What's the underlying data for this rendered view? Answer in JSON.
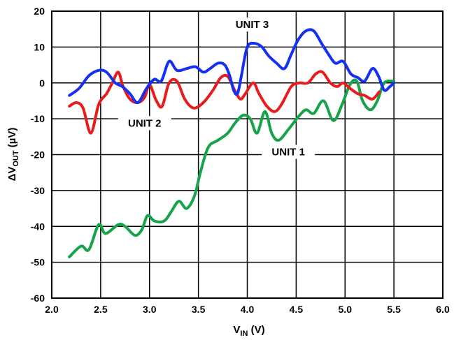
{
  "chart_data": {
    "type": "line",
    "title": "",
    "xlabel": {
      "main": "V",
      "sub": "IN",
      "unit": " (V)"
    },
    "ylabel": {
      "prefix": "ΔV",
      "sub": "OUT",
      "unit": " (µV)"
    },
    "xlim": [
      2.0,
      6.0
    ],
    "ylim": [
      -60,
      20
    ],
    "xticks": [
      "2.0",
      "2.5",
      "3.0",
      "3.5",
      "4.0",
      "4.5",
      "5.0",
      "5.5",
      "6.0"
    ],
    "yticks": [
      "20",
      "10",
      "0",
      "-10",
      "-20",
      "-30",
      "-40",
      "-50",
      "-60"
    ],
    "grid": true,
    "series": [
      {
        "name": "UNIT 1",
        "color": "#16a34a",
        "points": [
          [
            2.18,
            -48.5
          ],
          [
            2.3,
            -45.5
          ],
          [
            2.38,
            -46.5
          ],
          [
            2.48,
            -39.5
          ],
          [
            2.55,
            -42
          ],
          [
            2.68,
            -39.5
          ],
          [
            2.75,
            -40
          ],
          [
            2.85,
            -42.5
          ],
          [
            2.92,
            -41
          ],
          [
            2.98,
            -37
          ],
          [
            3.05,
            -38.5
          ],
          [
            3.15,
            -38.5
          ],
          [
            3.22,
            -36
          ],
          [
            3.3,
            -33
          ],
          [
            3.38,
            -35
          ],
          [
            3.46,
            -31.5
          ],
          [
            3.52,
            -25
          ],
          [
            3.6,
            -18
          ],
          [
            3.7,
            -16
          ],
          [
            3.8,
            -14
          ],
          [
            3.88,
            -11
          ],
          [
            3.96,
            -9
          ],
          [
            4.03,
            -10
          ],
          [
            4.1,
            -14
          ],
          [
            4.18,
            -8
          ],
          [
            4.25,
            -14
          ],
          [
            4.32,
            -16
          ],
          [
            4.42,
            -13
          ],
          [
            4.52,
            -9.5
          ],
          [
            4.6,
            -7.5
          ],
          [
            4.68,
            -8.5
          ],
          [
            4.78,
            -5
          ],
          [
            4.88,
            -10.5
          ],
          [
            4.97,
            -6
          ],
          [
            5.05,
            -0.5
          ],
          [
            5.12,
            0.5
          ],
          [
            5.18,
            -5
          ],
          [
            5.26,
            -7.5
          ],
          [
            5.33,
            -5
          ],
          [
            5.4,
            0
          ],
          [
            5.5,
            0.5
          ]
        ]
      },
      {
        "name": "UNIT 2",
        "color": "#e81c1c",
        "points": [
          [
            2.18,
            -6.5
          ],
          [
            2.25,
            -5.5
          ],
          [
            2.32,
            -7
          ],
          [
            2.4,
            -14
          ],
          [
            2.48,
            -6
          ],
          [
            2.56,
            -3
          ],
          [
            2.62,
            0
          ],
          [
            2.68,
            3
          ],
          [
            2.73,
            -1
          ],
          [
            2.8,
            -4.5
          ],
          [
            2.88,
            -5.5
          ],
          [
            2.95,
            -4
          ],
          [
            3.0,
            -0.5
          ],
          [
            3.07,
            -5
          ],
          [
            3.13,
            -6.5
          ],
          [
            3.2,
            0
          ],
          [
            3.28,
            0.5
          ],
          [
            3.36,
            -4.5
          ],
          [
            3.45,
            -7
          ],
          [
            3.55,
            -5.5
          ],
          [
            3.65,
            -2
          ],
          [
            3.73,
            1.5
          ],
          [
            3.8,
            1.8
          ],
          [
            3.87,
            -2
          ],
          [
            3.93,
            -4.5
          ],
          [
            3.98,
            -3
          ],
          [
            4.06,
            0
          ],
          [
            4.12,
            -3
          ],
          [
            4.2,
            -6.5
          ],
          [
            4.28,
            -8
          ],
          [
            4.35,
            -6
          ],
          [
            4.45,
            -1
          ],
          [
            4.53,
            0
          ],
          [
            4.62,
            0
          ],
          [
            4.7,
            2.5
          ],
          [
            4.77,
            3
          ],
          [
            4.85,
            0
          ],
          [
            4.92,
            -1
          ],
          [
            4.98,
            0
          ],
          [
            5.05,
            -1.5
          ],
          [
            5.13,
            -3
          ],
          [
            5.2,
            -3.5
          ],
          [
            5.28,
            -4.5
          ],
          [
            5.35,
            -2.5
          ]
        ]
      },
      {
        "name": "UNIT 3",
        "color": "#1430f0",
        "points": [
          [
            2.18,
            -3.5
          ],
          [
            2.28,
            -1.5
          ],
          [
            2.38,
            2
          ],
          [
            2.48,
            3.5
          ],
          [
            2.56,
            3
          ],
          [
            2.65,
            0
          ],
          [
            2.72,
            -1
          ],
          [
            2.8,
            -3
          ],
          [
            2.88,
            -5.5
          ],
          [
            2.97,
            -1.5
          ],
          [
            3.05,
            1
          ],
          [
            3.12,
            0.5
          ],
          [
            3.2,
            6
          ],
          [
            3.28,
            3.5
          ],
          [
            3.38,
            4
          ],
          [
            3.47,
            4.5
          ],
          [
            3.55,
            3
          ],
          [
            3.62,
            4
          ],
          [
            3.7,
            5.5
          ],
          [
            3.77,
            5
          ],
          [
            3.82,
            2
          ],
          [
            3.86,
            -2
          ],
          [
            3.9,
            -3
          ],
          [
            3.94,
            2
          ],
          [
            4.0,
            10
          ],
          [
            4.08,
            11
          ],
          [
            4.15,
            10
          ],
          [
            4.22,
            7.5
          ],
          [
            4.3,
            5.5
          ],
          [
            4.38,
            4
          ],
          [
            4.45,
            8
          ],
          [
            4.52,
            12
          ],
          [
            4.6,
            14.5
          ],
          [
            4.68,
            14.5
          ],
          [
            4.76,
            11
          ],
          [
            4.83,
            8
          ],
          [
            4.9,
            5.5
          ],
          [
            4.98,
            6
          ],
          [
            5.06,
            2.5
          ],
          [
            5.13,
            1.5
          ],
          [
            5.2,
            0.5
          ],
          [
            5.28,
            4
          ],
          [
            5.34,
            2
          ],
          [
            5.4,
            -2
          ],
          [
            5.46,
            -1
          ],
          [
            5.5,
            0
          ]
        ]
      }
    ],
    "annotations": [
      {
        "text": "UNIT 3",
        "x": 4.05,
        "y": 15.5
      },
      {
        "text": "UNIT 2",
        "x": 2.95,
        "y": -12
      },
      {
        "text": "UNIT 1",
        "x": 4.42,
        "y": -20
      }
    ]
  }
}
